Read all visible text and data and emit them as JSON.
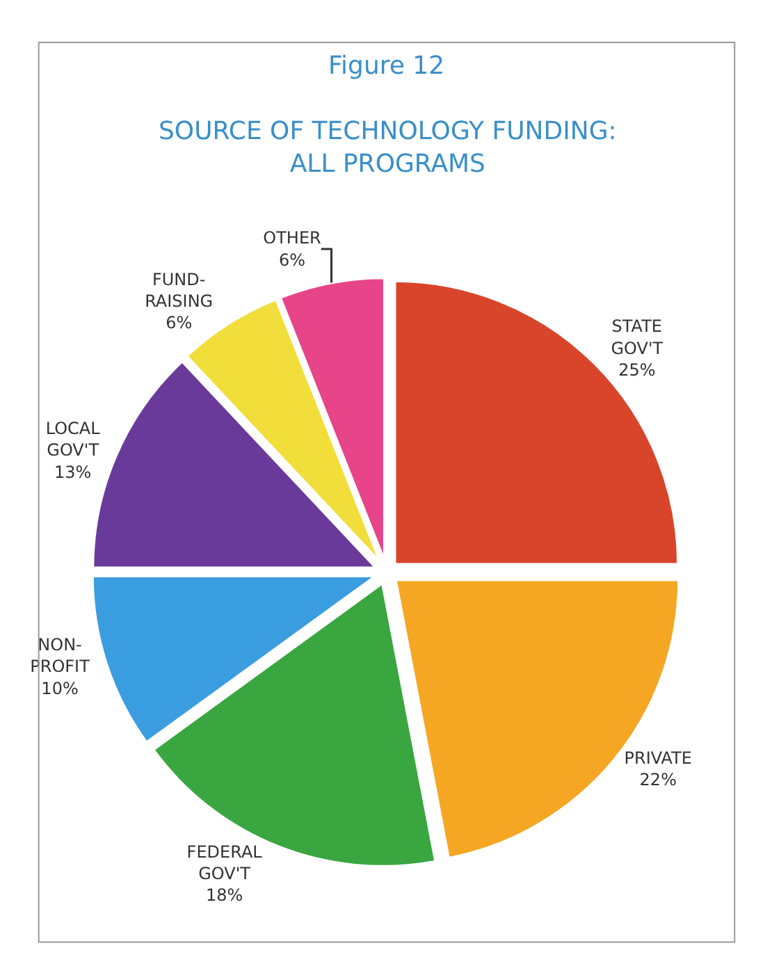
{
  "chart_data": {
    "type": "pie",
    "title": "Figure 12",
    "subtitle": "SOURCE OF TECHNOLOGY FUNDING: ALL PROGRAMS",
    "categories": [
      "STATE GOV'T",
      "PRIVATE",
      "FEDERAL GOV'T",
      "NON-PROFIT",
      "LOCAL GOV'T",
      "FUND-RAISING",
      "OTHER"
    ],
    "values": [
      25,
      22,
      18,
      10,
      13,
      6,
      6
    ],
    "colors": [
      "#d9452b",
      "#f5a623",
      "#3aa640",
      "#3a9de0",
      "#6a3a9a",
      "#f2de3a",
      "#e8448a"
    ],
    "value_labels": [
      "25%",
      "22%",
      "18%",
      "10%",
      "13%",
      "6%",
      "6%"
    ],
    "legend": false
  }
}
